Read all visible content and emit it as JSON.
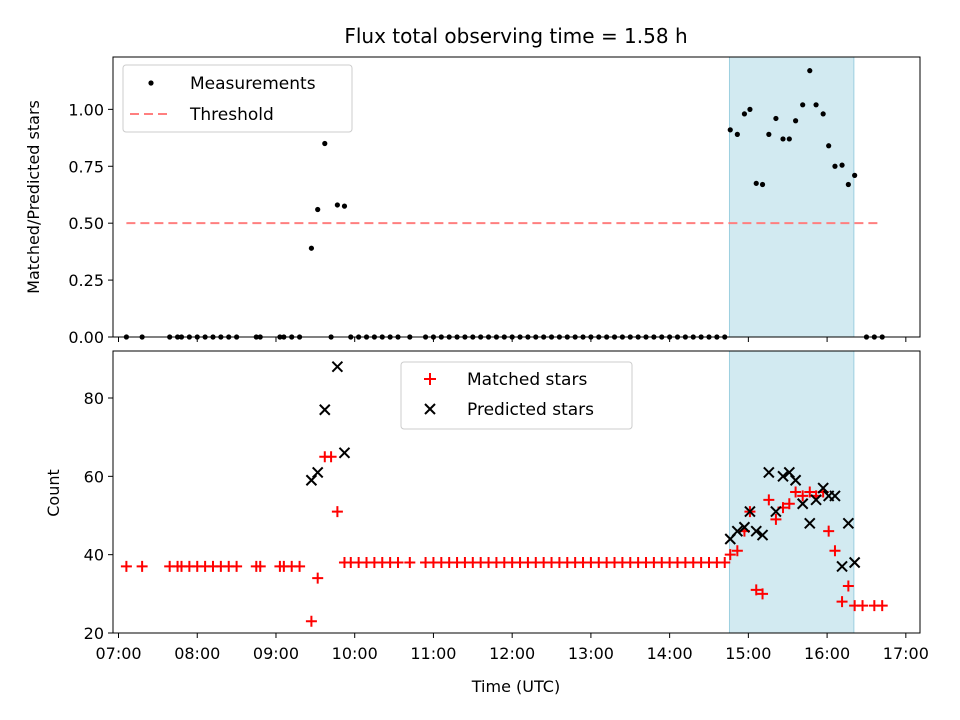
{
  "chart_data": {
    "title": "Flux total observing time = 1.58 h",
    "xlabel": "Time (UTC)",
    "xlim": [
      6.93,
      17.18
    ],
    "xticks": [
      {
        "v": 7,
        "label": "07:00"
      },
      {
        "v": 8,
        "label": "08:00"
      },
      {
        "v": 9,
        "label": "09:00"
      },
      {
        "v": 10,
        "label": "10:00"
      },
      {
        "v": 11,
        "label": "11:00"
      },
      {
        "v": 12,
        "label": "12:00"
      },
      {
        "v": 13,
        "label": "13:00"
      },
      {
        "v": 14,
        "label": "14:00"
      },
      {
        "v": 15,
        "label": "15:00"
      },
      {
        "v": 16,
        "label": "16:00"
      },
      {
        "v": 17,
        "label": "17:00"
      }
    ],
    "shaded_interval": [
      14.76,
      16.34
    ],
    "colors": {
      "shade": "#add8e6",
      "threshold": "#ff7f7f",
      "matched": "#ff0000",
      "predicted": "#000000",
      "measure": "#000000"
    },
    "top": {
      "type": "scatter",
      "ylabel": "Matched/Predicted stars",
      "ylim": [
        0,
        1.23
      ],
      "yticks": [
        "0.00",
        "0.25",
        "0.50",
        "0.75",
        "1.00"
      ],
      "threshold": {
        "value": 0.5,
        "x": [
          7.1,
          16.7
        ]
      },
      "legend": [
        "Measurements",
        "Threshold"
      ],
      "measurements": [
        [
          7.1,
          0
        ],
        [
          7.3,
          0
        ],
        [
          7.65,
          0
        ],
        [
          7.75,
          0
        ],
        [
          7.8,
          0
        ],
        [
          7.9,
          0
        ],
        [
          8.0,
          0
        ],
        [
          8.1,
          0
        ],
        [
          8.2,
          0
        ],
        [
          8.3,
          0
        ],
        [
          8.4,
          0
        ],
        [
          8.5,
          0
        ],
        [
          8.75,
          0
        ],
        [
          8.8,
          0
        ],
        [
          9.05,
          0
        ],
        [
          9.1,
          0
        ],
        [
          9.2,
          0
        ],
        [
          9.3,
          0
        ],
        [
          9.45,
          0.39
        ],
        [
          9.53,
          0.56
        ],
        [
          9.62,
          0.85
        ],
        [
          9.7,
          0
        ],
        [
          9.78,
          0.58
        ],
        [
          9.87,
          0.575
        ],
        [
          9.95,
          0
        ],
        [
          10.05,
          0
        ],
        [
          10.15,
          0
        ],
        [
          10.25,
          0
        ],
        [
          10.35,
          0
        ],
        [
          10.45,
          0
        ],
        [
          10.55,
          0
        ],
        [
          10.7,
          0
        ],
        [
          10.9,
          0
        ],
        [
          11.0,
          0
        ],
        [
          11.1,
          0
        ],
        [
          11.2,
          0
        ],
        [
          11.3,
          0
        ],
        [
          11.4,
          0
        ],
        [
          11.5,
          0
        ],
        [
          11.6,
          0
        ],
        [
          11.7,
          0
        ],
        [
          11.8,
          0
        ],
        [
          11.9,
          0
        ],
        [
          12.0,
          0
        ],
        [
          12.1,
          0
        ],
        [
          12.2,
          0
        ],
        [
          12.3,
          0
        ],
        [
          12.4,
          0
        ],
        [
          12.5,
          0
        ],
        [
          12.6,
          0
        ],
        [
          12.7,
          0
        ],
        [
          12.8,
          0
        ],
        [
          12.9,
          0
        ],
        [
          13.0,
          0
        ],
        [
          13.1,
          0
        ],
        [
          13.2,
          0
        ],
        [
          13.3,
          0
        ],
        [
          13.4,
          0
        ],
        [
          13.5,
          0
        ],
        [
          13.6,
          0
        ],
        [
          13.7,
          0
        ],
        [
          13.8,
          0
        ],
        [
          13.9,
          0
        ],
        [
          14.0,
          0
        ],
        [
          14.1,
          0
        ],
        [
          14.2,
          0
        ],
        [
          14.3,
          0
        ],
        [
          14.4,
          0
        ],
        [
          14.5,
          0
        ],
        [
          14.6,
          0
        ],
        [
          14.7,
          0
        ],
        [
          14.77,
          0.91
        ],
        [
          14.86,
          0.89
        ],
        [
          14.95,
          0.98
        ],
        [
          15.02,
          1.0
        ],
        [
          15.1,
          0.675
        ],
        [
          15.18,
          0.67
        ],
        [
          15.26,
          0.89
        ],
        [
          15.35,
          0.96
        ],
        [
          15.44,
          0.87
        ],
        [
          15.52,
          0.87
        ],
        [
          15.6,
          0.95
        ],
        [
          15.69,
          1.02
        ],
        [
          15.78,
          1.17
        ],
        [
          15.86,
          1.02
        ],
        [
          15.95,
          0.98
        ],
        [
          16.02,
          0.84
        ],
        [
          16.1,
          0.75
        ],
        [
          16.19,
          0.755
        ],
        [
          16.27,
          0.67
        ],
        [
          16.35,
          0.71
        ],
        [
          16.5,
          0
        ],
        [
          16.6,
          0
        ],
        [
          16.7,
          0
        ]
      ]
    },
    "bottom": {
      "type": "scatter",
      "ylabel": "Count",
      "ylim": [
        20,
        92
      ],
      "yticks": [
        20,
        40,
        60,
        80
      ],
      "legend": [
        "Matched stars",
        "Predicted stars"
      ],
      "matched": [
        [
          7.1,
          37
        ],
        [
          7.3,
          37
        ],
        [
          7.65,
          37
        ],
        [
          7.75,
          37
        ],
        [
          7.8,
          37
        ],
        [
          7.9,
          37
        ],
        [
          8.0,
          37
        ],
        [
          8.1,
          37
        ],
        [
          8.2,
          37
        ],
        [
          8.3,
          37
        ],
        [
          8.4,
          37
        ],
        [
          8.5,
          37
        ],
        [
          8.75,
          37
        ],
        [
          8.8,
          37
        ],
        [
          9.05,
          37
        ],
        [
          9.1,
          37
        ],
        [
          9.2,
          37
        ],
        [
          9.3,
          37
        ],
        [
          9.45,
          23
        ],
        [
          9.53,
          34
        ],
        [
          9.62,
          65
        ],
        [
          9.7,
          65
        ],
        [
          9.78,
          51
        ],
        [
          9.87,
          38
        ],
        [
          9.95,
          38
        ],
        [
          10.05,
          38
        ],
        [
          10.15,
          38
        ],
        [
          10.25,
          38
        ],
        [
          10.35,
          38
        ],
        [
          10.45,
          38
        ],
        [
          10.55,
          38
        ],
        [
          10.7,
          38
        ],
        [
          10.9,
          38
        ],
        [
          11.0,
          38
        ],
        [
          11.1,
          38
        ],
        [
          11.2,
          38
        ],
        [
          11.3,
          38
        ],
        [
          11.4,
          38
        ],
        [
          11.5,
          38
        ],
        [
          11.6,
          38
        ],
        [
          11.7,
          38
        ],
        [
          11.8,
          38
        ],
        [
          11.9,
          38
        ],
        [
          12.0,
          38
        ],
        [
          12.1,
          38
        ],
        [
          12.2,
          38
        ],
        [
          12.3,
          38
        ],
        [
          12.4,
          38
        ],
        [
          12.5,
          38
        ],
        [
          12.6,
          38
        ],
        [
          12.7,
          38
        ],
        [
          12.8,
          38
        ],
        [
          12.9,
          38
        ],
        [
          13.0,
          38
        ],
        [
          13.1,
          38
        ],
        [
          13.2,
          38
        ],
        [
          13.3,
          38
        ],
        [
          13.4,
          38
        ],
        [
          13.5,
          38
        ],
        [
          13.6,
          38
        ],
        [
          13.7,
          38
        ],
        [
          13.8,
          38
        ],
        [
          13.9,
          38
        ],
        [
          14.0,
          38
        ],
        [
          14.1,
          38
        ],
        [
          14.2,
          38
        ],
        [
          14.3,
          38
        ],
        [
          14.4,
          38
        ],
        [
          14.5,
          38
        ],
        [
          14.6,
          38
        ],
        [
          14.7,
          38
        ],
        [
          14.77,
          40
        ],
        [
          14.86,
          41
        ],
        [
          14.95,
          46
        ],
        [
          15.02,
          51
        ],
        [
          15.1,
          31
        ],
        [
          15.18,
          30
        ],
        [
          15.26,
          54
        ],
        [
          15.35,
          49
        ],
        [
          15.44,
          52
        ],
        [
          15.52,
          53
        ],
        [
          15.6,
          56
        ],
        [
          15.69,
          55
        ],
        [
          15.78,
          56
        ],
        [
          15.86,
          55
        ],
        [
          15.95,
          56
        ],
        [
          16.02,
          46
        ],
        [
          16.1,
          41
        ],
        [
          16.19,
          28
        ],
        [
          16.27,
          32
        ],
        [
          16.35,
          27
        ],
        [
          16.45,
          27
        ],
        [
          16.6,
          27
        ],
        [
          16.7,
          27
        ]
      ],
      "predicted": [
        [
          9.45,
          59
        ],
        [
          9.53,
          61
        ],
        [
          9.62,
          77
        ],
        [
          9.78,
          88
        ],
        [
          9.87,
          66
        ],
        [
          14.77,
          44
        ],
        [
          14.86,
          46
        ],
        [
          14.95,
          47
        ],
        [
          15.02,
          51
        ],
        [
          15.1,
          46
        ],
        [
          15.18,
          45
        ],
        [
          15.26,
          61
        ],
        [
          15.35,
          51
        ],
        [
          15.44,
          60
        ],
        [
          15.52,
          61
        ],
        [
          15.6,
          59
        ],
        [
          15.69,
          53
        ],
        [
          15.78,
          48
        ],
        [
          15.86,
          54
        ],
        [
          15.95,
          57
        ],
        [
          16.02,
          55
        ],
        [
          16.1,
          55
        ],
        [
          16.19,
          37
        ],
        [
          16.27,
          48
        ],
        [
          16.35,
          38
        ]
      ]
    }
  }
}
